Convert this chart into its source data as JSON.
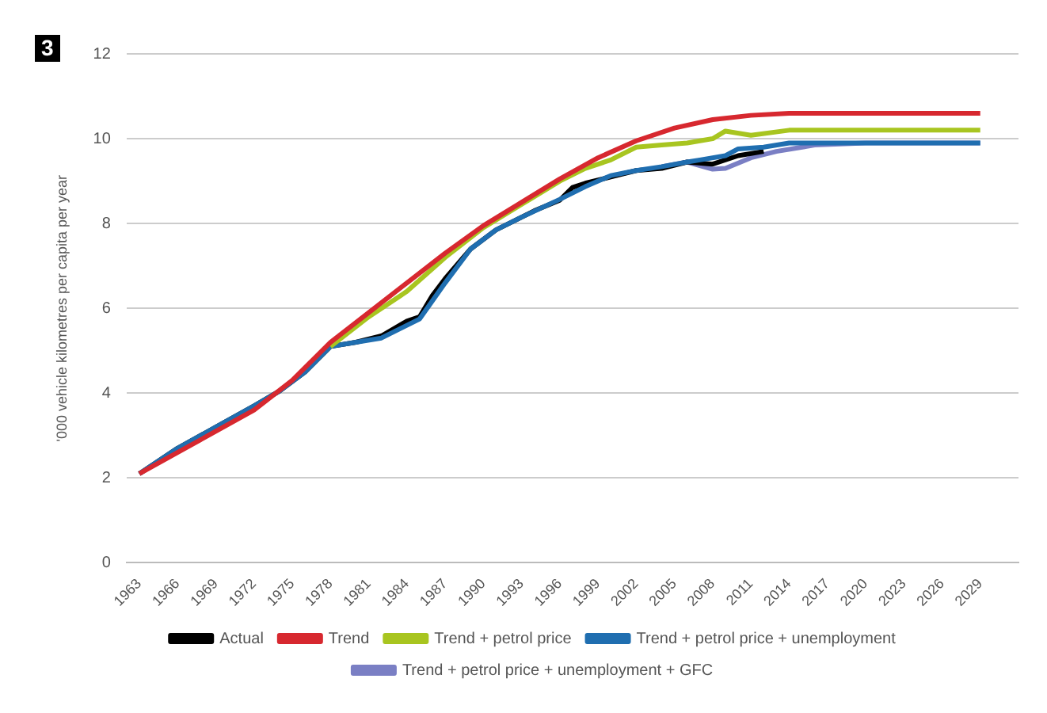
{
  "chart_data": {
    "type": "line",
    "title": "3",
    "ylabel": "'000 vehicle kilometres per capita per year",
    "xlim": [
      1962,
      2032
    ],
    "xticks": [
      1963,
      1966,
      1969,
      1972,
      1975,
      1978,
      1981,
      1984,
      1987,
      1990,
      1993,
      1996,
      1999,
      2002,
      2005,
      2008,
      2011,
      2014,
      2017,
      2020,
      2023,
      2026,
      2029
    ],
    "ylim": [
      0,
      12
    ],
    "yticks": [
      0,
      2,
      4,
      6,
      8,
      10,
      12
    ],
    "grid": "y",
    "legend": "bottom",
    "marker": "none",
    "line_style": "solid",
    "series": [
      {
        "name": "Actual",
        "color": "#000000",
        "x": [
          1963,
          1966,
          1969,
          1972,
          1974,
          1976,
          1978,
          1980,
          1982,
          1984,
          1985,
          1986,
          1987,
          1989,
          1991,
          1993,
          1994,
          1996,
          1997,
          1998,
          2000,
          2002,
          2004,
          2006,
          2008,
          2010,
          2012
        ],
        "values": [
          2.1,
          2.7,
          3.2,
          3.7,
          4.05,
          4.5,
          5.1,
          5.2,
          5.35,
          5.7,
          5.8,
          6.3,
          6.7,
          7.4,
          7.85,
          8.15,
          8.3,
          8.55,
          8.85,
          8.95,
          9.1,
          9.25,
          9.3,
          9.45,
          9.4,
          9.6,
          9.7
        ]
      },
      {
        "name": "Trend",
        "color": "#d7282f",
        "x": [
          1963,
          1966,
          1969,
          1972,
          1975,
          1978,
          1981,
          1984,
          1987,
          1990,
          1993,
          1996,
          1999,
          2002,
          2005,
          2008,
          2011,
          2014,
          2029
        ],
        "values": [
          2.1,
          2.6,
          3.1,
          3.6,
          4.3,
          5.2,
          5.9,
          6.6,
          7.3,
          7.95,
          8.5,
          9.05,
          9.55,
          9.95,
          10.25,
          10.45,
          10.55,
          10.6,
          10.6
        ]
      },
      {
        "name": "Trend + petrol price",
        "color": "#a8c520",
        "x": [
          1978,
          1981,
          1984,
          1987,
          1990,
          1993,
          1996,
          1998,
          2000,
          2002,
          2004,
          2006,
          2008,
          2009,
          2011,
          2014,
          2029
        ],
        "values": [
          5.1,
          5.8,
          6.4,
          7.2,
          7.9,
          8.45,
          9.0,
          9.3,
          9.5,
          9.8,
          9.85,
          9.9,
          10.0,
          10.18,
          10.08,
          10.2,
          10.2
        ]
      },
      {
        "name": "Trend + petrol price + unemployment",
        "color": "#1f6eb0",
        "x": [
          1963,
          1966,
          1969,
          1972,
          1974,
          1976,
          1978,
          1980,
          1982,
          1985,
          1987,
          1989,
          1991,
          1993,
          1996,
          1998,
          2000,
          2002,
          2004,
          2006,
          2007,
          2009,
          2010,
          2012,
          2014,
          2020,
          2029
        ],
        "values": [
          2.1,
          2.7,
          3.2,
          3.7,
          4.05,
          4.5,
          5.1,
          5.2,
          5.3,
          5.75,
          6.6,
          7.4,
          7.85,
          8.15,
          8.57,
          8.87,
          9.13,
          9.25,
          9.34,
          9.45,
          9.5,
          9.6,
          9.76,
          9.8,
          9.9,
          9.9,
          9.9
        ]
      },
      {
        "name": "Trend + petrol price + unemployment + GFC",
        "color": "#7a7fc4",
        "x": [
          2004,
          2006,
          2008,
          2009,
          2011,
          2013,
          2016,
          2020,
          2029
        ],
        "values": [
          9.34,
          9.45,
          9.28,
          9.3,
          9.55,
          9.7,
          9.85,
          9.9,
          9.9
        ]
      }
    ]
  }
}
